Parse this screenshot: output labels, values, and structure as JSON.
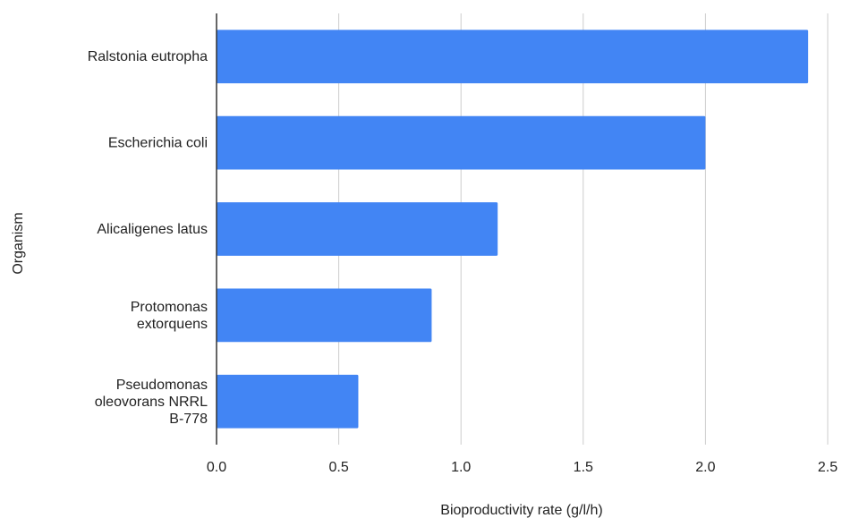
{
  "chart_data": {
    "type": "bar",
    "orientation": "horizontal",
    "title": "",
    "xlabel": "Bioproductivity rate (g/l/h)",
    "ylabel": "Organism",
    "xlim": [
      0,
      2.5
    ],
    "xticks": [
      "0.0",
      "0.5",
      "1.0",
      "1.5",
      "2.0",
      "2.5"
    ],
    "grid": true,
    "legend": "none",
    "bar_color": "#4285f4",
    "categories": [
      [
        "Ralstonia eutropha"
      ],
      [
        "Escherichia coli"
      ],
      [
        "Alicaligenes latus"
      ],
      [
        "Protomonas",
        "extorquens"
      ],
      [
        "Pseudomonas",
        "oleovorans NRRL",
        "B-778"
      ]
    ],
    "values": [
      2.42,
      2.0,
      1.15,
      0.88,
      0.58
    ]
  }
}
